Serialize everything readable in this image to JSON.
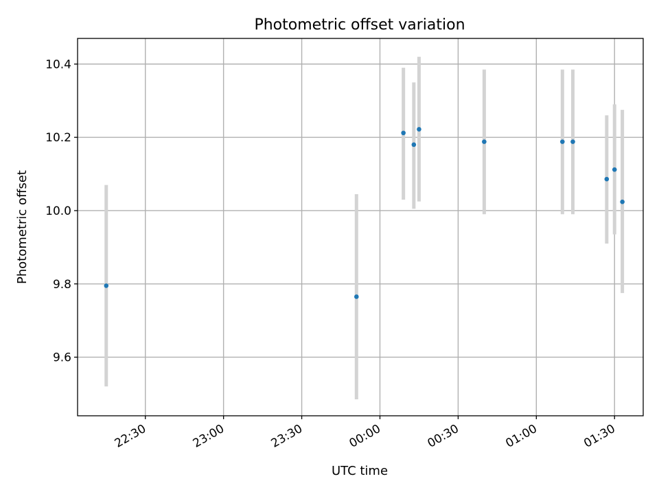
{
  "chart_data": {
    "type": "scatter",
    "title": "Photometric offset variation",
    "xlabel": "UTC time",
    "ylabel": "Photometric offset",
    "x_unit": "UTC time (hh:mm), date rolls over after 00:00",
    "x_ticks": [
      "22:30",
      "23:00",
      "23:30",
      "00:00",
      "00:30",
      "01:00",
      "01:30"
    ],
    "y_ticks": [
      "9.6",
      "9.8",
      "10.0",
      "10.2",
      "10.4"
    ],
    "xlim": [
      "22:04",
      "01:41"
    ],
    "ylim": [
      9.44,
      10.47
    ],
    "grid": true,
    "point_color": "#1f77b4",
    "errorbar_color": "#d3d3d3",
    "points": [
      {
        "x": "22:15",
        "y": 9.795,
        "ylow": 9.52,
        "yhigh": 10.07
      },
      {
        "x": "23:51",
        "y": 9.765,
        "ylow": 9.485,
        "yhigh": 10.045
      },
      {
        "x": "00:09",
        "y": 10.212,
        "ylow": 10.03,
        "yhigh": 10.39
      },
      {
        "x": "00:13",
        "y": 10.18,
        "ylow": 10.005,
        "yhigh": 10.35
      },
      {
        "x": "00:15",
        "y": 10.222,
        "ylow": 10.025,
        "yhigh": 10.42
      },
      {
        "x": "00:40",
        "y": 10.188,
        "ylow": 9.99,
        "yhigh": 10.385
      },
      {
        "x": "01:10",
        "y": 10.188,
        "ylow": 9.99,
        "yhigh": 10.385
      },
      {
        "x": "01:14",
        "y": 10.188,
        "ylow": 9.99,
        "yhigh": 10.385
      },
      {
        "x": "01:27",
        "y": 10.086,
        "ylow": 9.91,
        "yhigh": 10.26
      },
      {
        "x": "01:30",
        "y": 10.112,
        "ylow": 9.935,
        "yhigh": 10.29
      },
      {
        "x": "01:33",
        "y": 10.024,
        "ylow": 9.775,
        "yhigh": 10.275
      }
    ]
  }
}
